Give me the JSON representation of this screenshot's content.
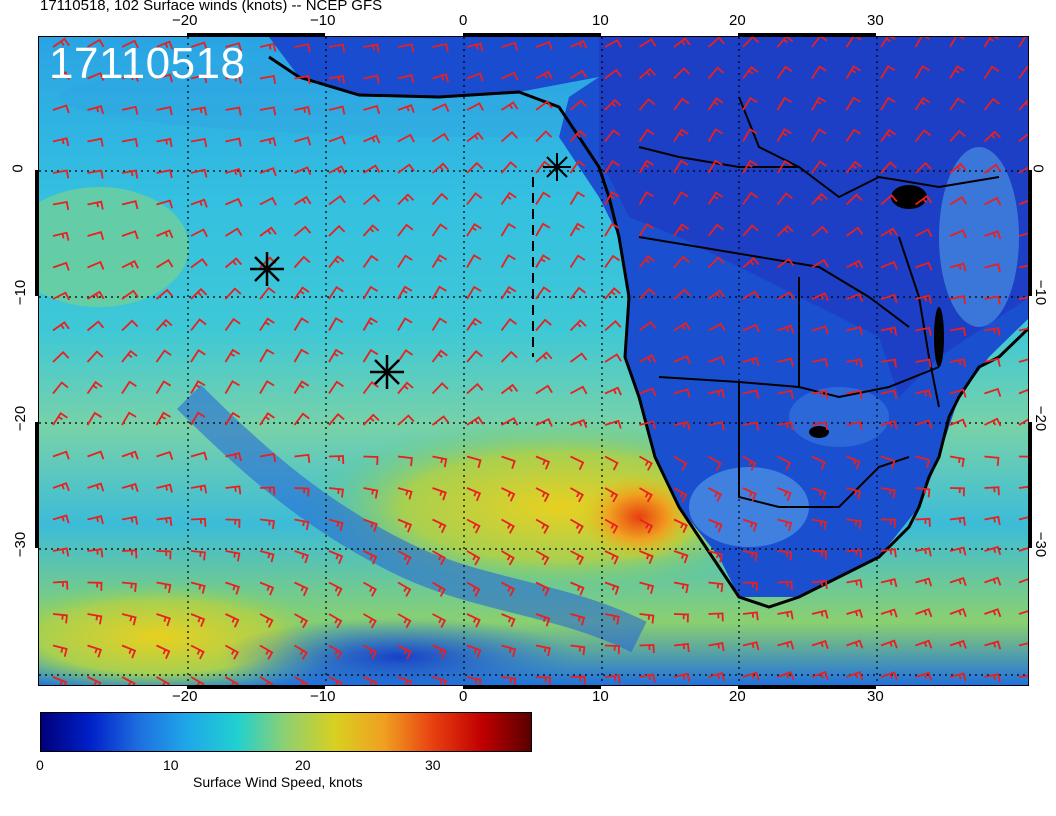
{
  "title": "17110518, 102 Surface winds (knots) -- NCEP GFS",
  "stamp": "17110518",
  "axes": {
    "top_labels": [
      "−20",
      "−10",
      "0",
      "10",
      "20",
      "30"
    ],
    "bottom_labels": [
      "−20",
      "−10",
      "0",
      "10",
      "20",
      "30"
    ],
    "left_labels": [
      "0",
      "−10",
      "−20",
      "−30"
    ],
    "right_labels": [
      "0",
      "−10",
      "−20",
      "−30"
    ]
  },
  "colorbar": {
    "ticks": [
      "0",
      "10",
      "20",
      "30"
    ],
    "label": "Surface Wind Speed, knots",
    "colors": [
      "#00007a",
      "#0020c8",
      "#1e6fe0",
      "#1fa8e8",
      "#20d0d0",
      "#8fd070",
      "#d8d020",
      "#f0a020",
      "#e84010",
      "#c00000",
      "#5a0000"
    ]
  },
  "markers": {
    "barb_color": "#e82020",
    "star_icon": "asterisk-marker"
  }
}
